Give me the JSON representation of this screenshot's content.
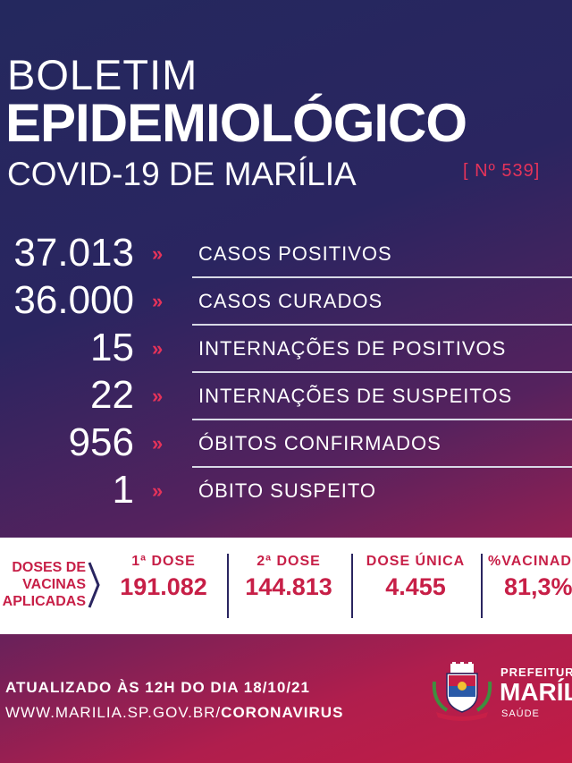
{
  "header": {
    "line1": "BOLETIM",
    "line2": "EPIDEMIOLÓGICO",
    "line3": "COVID-19 DE MARÍLIA",
    "number": "[ Nº 539]"
  },
  "stats": [
    {
      "value": "37.013",
      "label": "CASOS POSITIVOS"
    },
    {
      "value": "36.000",
      "label": "CASOS CURADOS"
    },
    {
      "value": "15",
      "label": "INTERNAÇÕES DE POSITIVOS"
    },
    {
      "value": "22",
      "label": "INTERNAÇÕES DE SUSPEITOS"
    },
    {
      "value": "956",
      "label": "ÓBITOS CONFIRMADOS"
    },
    {
      "value": "1",
      "label": "ÓBITO SUSPEITO"
    }
  ],
  "chevron": "»",
  "vaccines": {
    "title_l1": "DOSES DE",
    "title_l2": "VACINAS",
    "title_l3": "APLICADAS",
    "columns": [
      {
        "header": "1ª DOSE",
        "value": "191.082"
      },
      {
        "header": "2ª DOSE",
        "value": "144.813"
      },
      {
        "header": "DOSE ÚNICA",
        "value": "4.455"
      },
      {
        "header": "%VACINADOS",
        "value": "81,3%"
      }
    ]
  },
  "footer": {
    "updated": "ATUALIZADO ÀS 12H DO DIA 18/10/21",
    "site_prefix": "WWW.MARILIA.SP.GOV.BR/",
    "site_bold": "CORONAVIRUS",
    "logo_l1": "PREFEITURA",
    "logo_l2": "MARÍLIA",
    "logo_l3": "SAÚDE"
  },
  "colors": {
    "accent": "#c71f47",
    "navy": "#24285e"
  }
}
